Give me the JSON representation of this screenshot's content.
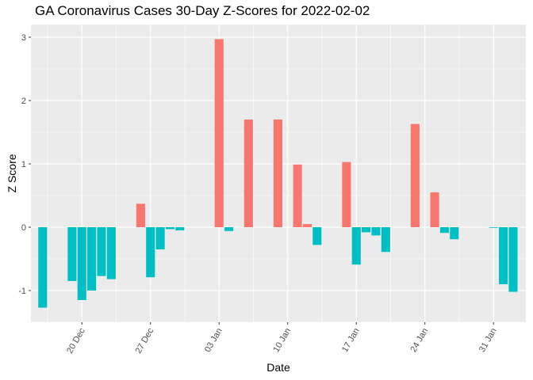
{
  "chart_data": {
    "type": "bar",
    "title": "GA Coronavirus Cases 30-Day Z-Scores for 2022-02-02",
    "xlabel": "Date",
    "ylabel": "Z Score",
    "ylim": [
      -1.5,
      3.2
    ],
    "y_ticks": [
      -1,
      0,
      1,
      2,
      3
    ],
    "x_ticks": [
      {
        "day": 5,
        "label": "20 Dec"
      },
      {
        "day": 12,
        "label": "27 Dec"
      },
      {
        "day": 19,
        "label": "03 Jan"
      },
      {
        "day": 26,
        "label": "10 Jan"
      },
      {
        "day": 33,
        "label": "17 Jan"
      },
      {
        "day": 40,
        "label": "24 Jan"
      },
      {
        "day": 47,
        "label": "31 Jan"
      }
    ],
    "x_range_days": [
      -0.2,
      50.3
    ],
    "legend": "none",
    "colors": {
      "positive": "#F8766D",
      "negative": "#00BFC4"
    },
    "series": [
      {
        "name": "z_score",
        "points": [
          {
            "day": 1,
            "value": -1.27
          },
          {
            "day": 4,
            "value": -0.85
          },
          {
            "day": 5,
            "value": -1.15
          },
          {
            "day": 6,
            "value": -1.0
          },
          {
            "day": 7,
            "value": -0.77
          },
          {
            "day": 8,
            "value": -0.82
          },
          {
            "day": 11,
            "value": 0.37
          },
          {
            "day": 12,
            "value": -0.79
          },
          {
            "day": 13,
            "value": -0.35
          },
          {
            "day": 14,
            "value": -0.03
          },
          {
            "day": 15,
            "value": -0.05
          },
          {
            "day": 19,
            "value": 2.97
          },
          {
            "day": 20,
            "value": -0.06
          },
          {
            "day": 22,
            "value": 1.7
          },
          {
            "day": 25,
            "value": 1.7
          },
          {
            "day": 27,
            "value": 0.99
          },
          {
            "day": 28,
            "value": 0.05
          },
          {
            "day": 29,
            "value": -0.28
          },
          {
            "day": 32,
            "value": 1.03
          },
          {
            "day": 33,
            "value": -0.59
          },
          {
            "day": 34,
            "value": -0.08
          },
          {
            "day": 35,
            "value": -0.13
          },
          {
            "day": 36,
            "value": -0.39
          },
          {
            "day": 39,
            "value": 1.63
          },
          {
            "day": 41,
            "value": 0.55
          },
          {
            "day": 42,
            "value": -0.09
          },
          {
            "day": 43,
            "value": -0.19
          },
          {
            "day": 47,
            "value": -0.01
          },
          {
            "day": 48,
            "value": -0.9
          },
          {
            "day": 49,
            "value": -1.02
          }
        ]
      }
    ]
  }
}
